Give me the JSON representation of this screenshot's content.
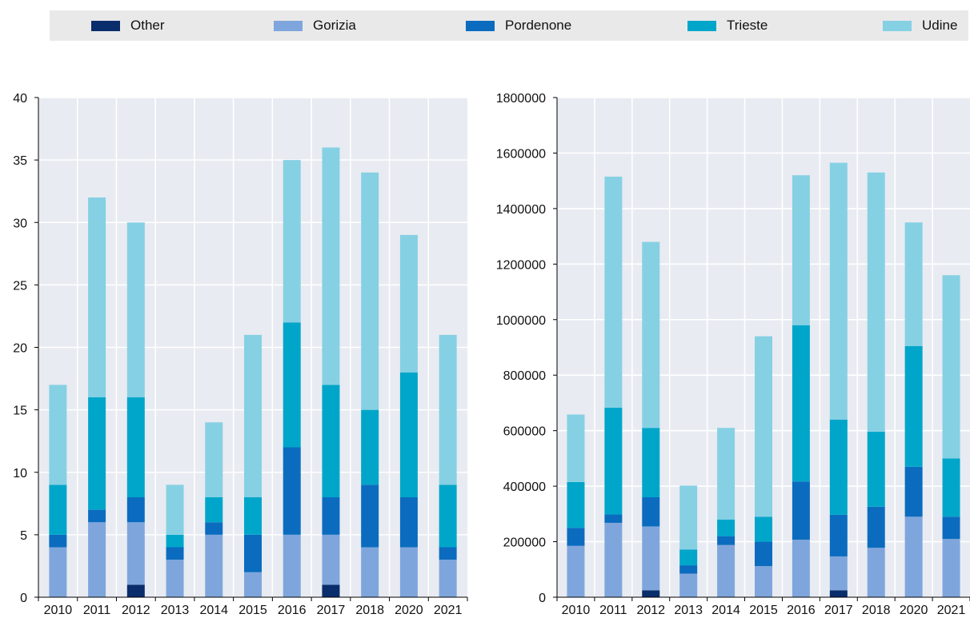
{
  "legend": {
    "items": [
      {
        "label": "Other",
        "color": "#0a2d6b"
      },
      {
        "label": "Gorizia",
        "color": "#7fa6dc"
      },
      {
        "label": "Pordenone",
        "color": "#0b6cbf"
      },
      {
        "label": "Trieste",
        "color": "#00a6c9"
      },
      {
        "label": "Udine",
        "color": "#86d0e4"
      }
    ]
  },
  "chart_data": [
    {
      "type": "bar",
      "stacked": true,
      "categories": [
        "2010",
        "2011",
        "2012",
        "2013",
        "2014",
        "2015",
        "2016",
        "2017",
        "2018",
        "2020",
        "2021"
      ],
      "ylim": [
        0,
        40
      ],
      "yticks": [
        "0",
        "5",
        "10",
        "15",
        "20",
        "25",
        "30",
        "35",
        "40"
      ],
      "grid": true,
      "legend_position": "top",
      "series": [
        {
          "name": "Other",
          "color": "#0a2d6b",
          "values": [
            0,
            0,
            1,
            0,
            0,
            0,
            0,
            1,
            0,
            0,
            0
          ]
        },
        {
          "name": "Gorizia",
          "color": "#7fa6dc",
          "values": [
            4,
            6,
            5,
            3,
            5,
            2,
            5,
            4,
            4,
            4,
            3
          ]
        },
        {
          "name": "Pordenone",
          "color": "#0b6cbf",
          "values": [
            1,
            1,
            2,
            1,
            1,
            3,
            7,
            3,
            5,
            4,
            1
          ]
        },
        {
          "name": "Trieste",
          "color": "#00a6c9",
          "values": [
            4,
            9,
            8,
            1,
            2,
            3,
            10,
            9,
            6,
            10,
            5
          ]
        },
        {
          "name": "Udine",
          "color": "#86d0e4",
          "values": [
            8,
            16,
            14,
            4,
            6,
            13,
            13,
            19,
            19,
            11,
            12
          ]
        }
      ]
    },
    {
      "type": "bar",
      "stacked": true,
      "categories": [
        "2010",
        "2011",
        "2012",
        "2013",
        "2014",
        "2015",
        "2016",
        "2017",
        "2018",
        "2020",
        "2021"
      ],
      "ylim": [
        0,
        1800000
      ],
      "yticks": [
        "0",
        "200000",
        "400000",
        "600000",
        "800000",
        "1000000",
        "1200000",
        "1400000",
        "1600000",
        "1800000"
      ],
      "grid": true,
      "legend_position": "top",
      "series": [
        {
          "name": "Other",
          "color": "#0a2d6b",
          "values": [
            0,
            0,
            25000,
            0,
            0,
            0,
            0,
            25000,
            0,
            0,
            0
          ]
        },
        {
          "name": "Gorizia",
          "color": "#7fa6dc",
          "values": [
            185000,
            268000,
            230000,
            85000,
            188000,
            112000,
            207000,
            122000,
            178000,
            290000,
            210000
          ]
        },
        {
          "name": "Pordenone",
          "color": "#0b6cbf",
          "values": [
            65000,
            30000,
            105000,
            30000,
            32000,
            88000,
            210000,
            150000,
            148000,
            180000,
            80000
          ]
        },
        {
          "name": "Trieste",
          "color": "#00a6c9",
          "values": [
            165000,
            385000,
            250000,
            57000,
            60000,
            90000,
            563000,
            343000,
            270000,
            435000,
            210000
          ]
        },
        {
          "name": "Udine",
          "color": "#86d0e4",
          "values": [
            243000,
            832000,
            670000,
            230000,
            330000,
            650000,
            540000,
            925000,
            934000,
            445000,
            660000
          ]
        }
      ]
    }
  ]
}
